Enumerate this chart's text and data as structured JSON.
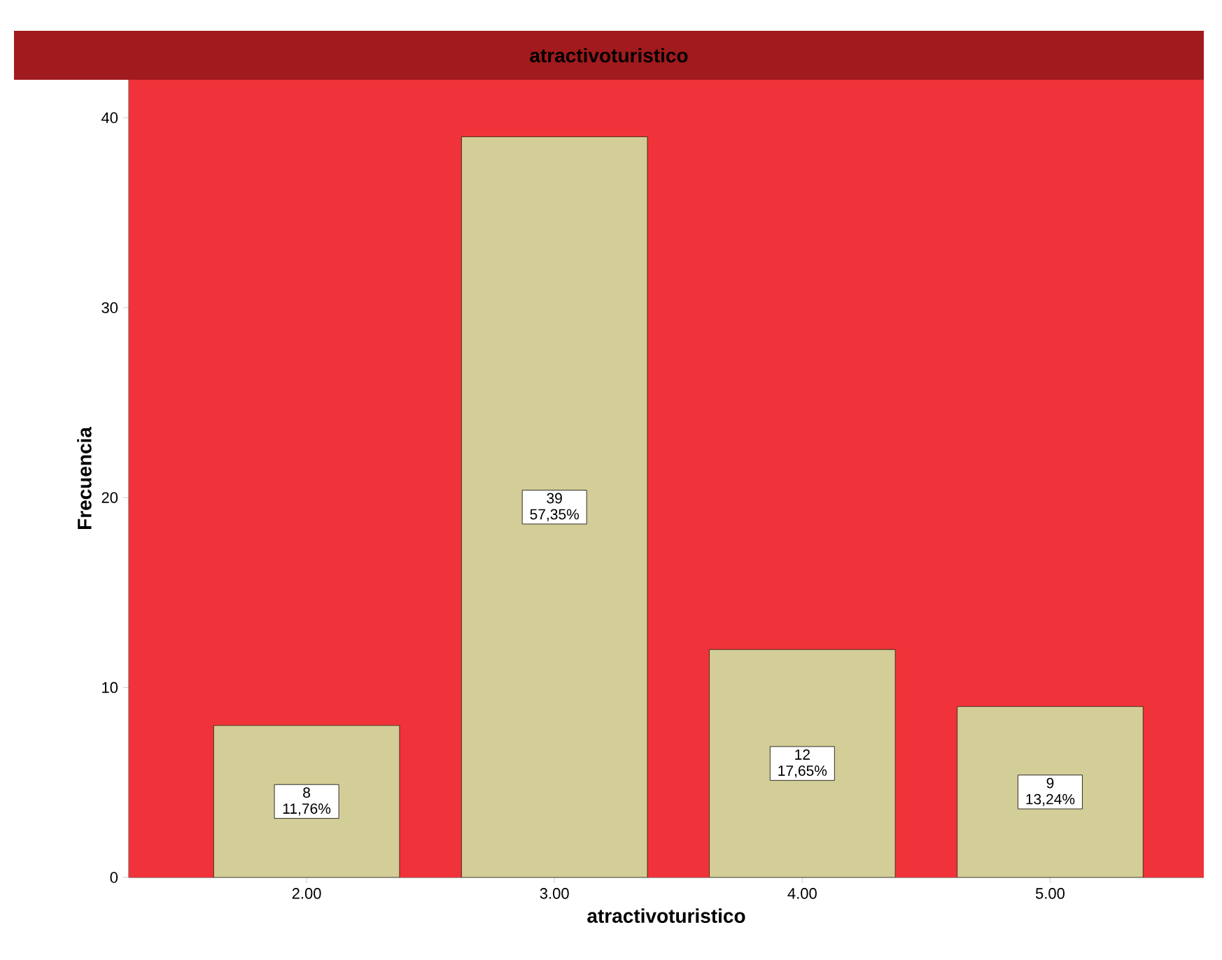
{
  "chart_data": {
    "type": "bar",
    "title": "atractivoturistico",
    "xlabel": "atractivoturistico",
    "ylabel": "Frecuencia",
    "categories": [
      "2.00",
      "3.00",
      "4.00",
      "5.00"
    ],
    "values": [
      8,
      39,
      12,
      9
    ],
    "value_labels": [
      "8 11,76%",
      "39 57,35%",
      "12 17,65%",
      "9 13,24%"
    ],
    "color": "#d3cd97",
    "ylim": [
      0,
      42
    ],
    "yticks": [
      0,
      10,
      20,
      30,
      40
    ],
    "grid": false
  }
}
